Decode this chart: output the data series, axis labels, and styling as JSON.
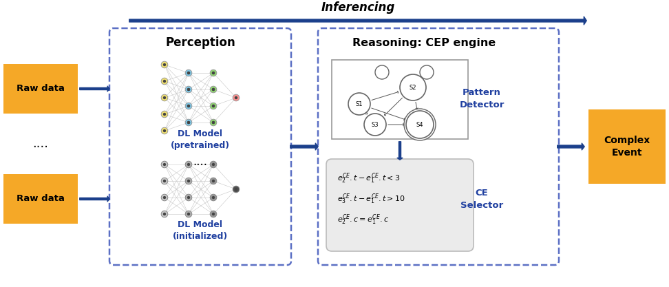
{
  "title": "Inferencing",
  "bg_color": "#ffffff",
  "gold_color": "#F5A827",
  "blue_arrow": "#1B3F8B",
  "blue_text": "#2040A0",
  "dashed_border": "#5B6FC4",
  "perception_title": "Perception",
  "reasoning_title": "Reasoning: CEP engine",
  "dl_model_pretrained": "DL Model\n(pretrained)",
  "dl_model_initialized": "DL Model\n(initialized)",
  "pattern_detector": "Pattern\nDetector",
  "ce_selector": "CE\nSelector",
  "complex_event": "Complex\nEvent",
  "raw_data": "Raw data",
  "dots": "....",
  "nn_colored_layer_colors": [
    [
      "#F5E67A",
      "#F5E67A",
      "#F5E67A",
      "#F5E67A",
      "#F5E67A"
    ],
    [
      "#87CEEB",
      "#87CEEB",
      "#87CEEB",
      "#87CEEB"
    ],
    [
      "#90EE90",
      "#90EE90",
      "#90EE90",
      "#90EE90"
    ],
    [
      "#FF9999"
    ]
  ],
  "nn_gray_shades": [
    "#C0C0C0",
    "#A8A8A8",
    "#888888",
    "#555555"
  ]
}
